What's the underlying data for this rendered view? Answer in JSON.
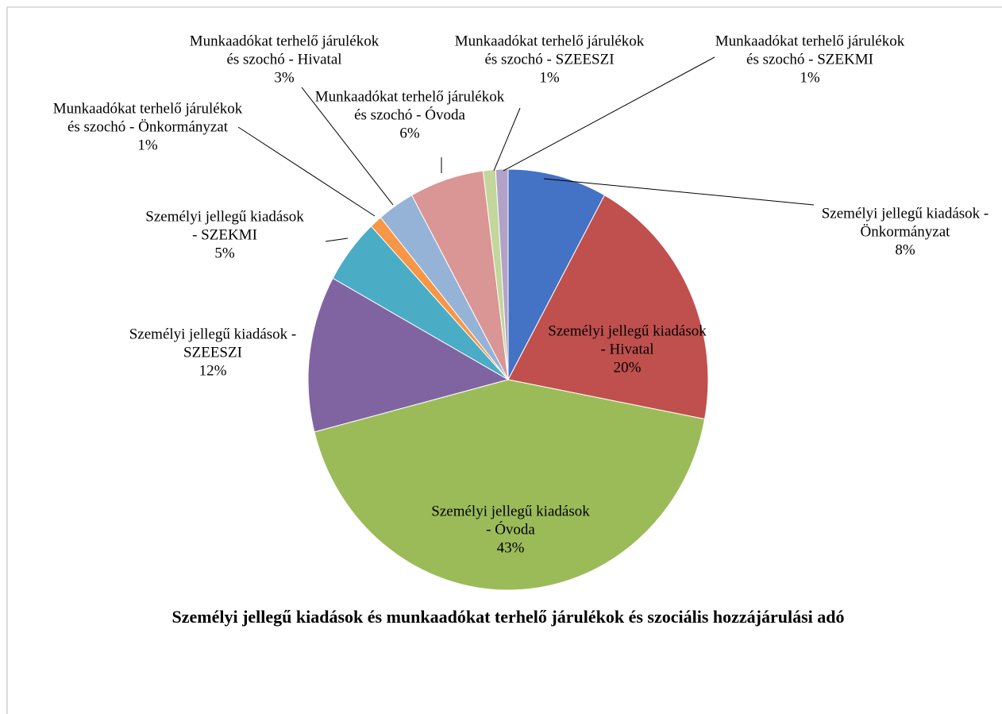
{
  "chart_data": {
    "type": "pie",
    "title": "Személyi jellegű kiadások és munkaadókat terhelő járulékok és szociális hozzájárulási adó",
    "categories": [
      "Személyi jellegű kiadások - Önkormányzat",
      "Személyi jellegű kiadások - Hivatal",
      "Személyi jellegű kiadások - Óvoda",
      "Személyi jellegű kiadások - SZEESZI",
      "Személyi jellegű kiadások - SZEKMI",
      "Munkaadókat terhelő járulékok és szochó - Önkormányzat",
      "Munkaadókat terhelő járulékok és szochó - Hivatal",
      "Munkaadókat terhelő járulékok és szochó - Óvoda",
      "Munkaadókat terhelő járulékok és szochó - SZEESZI",
      "Munkaadókat terhelő járulékok és szochó - SZEKMI"
    ],
    "values": [
      8,
      20,
      43,
      12,
      5,
      1,
      3,
      6,
      1,
      1
    ],
    "value_labels": [
      "8%",
      "20%",
      "43%",
      "12%",
      "5%",
      "1%",
      "3%",
      "6%",
      "1%",
      "1%"
    ],
    "colors": [
      "#4472c4",
      "#c0504d",
      "#9bbb59",
      "#8064a2",
      "#4bacc6",
      "#f79646",
      "#95b3d7",
      "#d99694",
      "#c3d69b",
      "#b3a2c7"
    ]
  }
}
